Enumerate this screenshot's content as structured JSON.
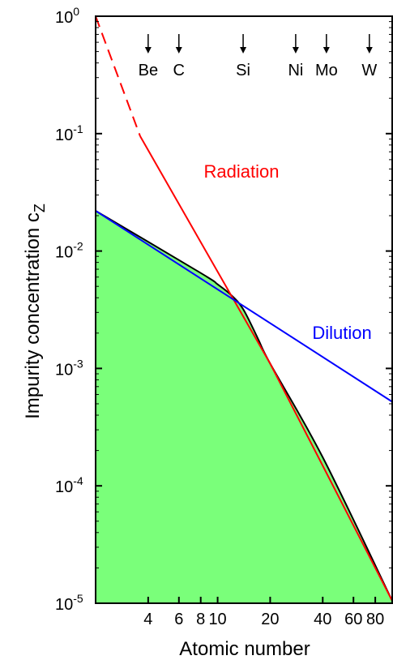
{
  "chart_data": {
    "type": "line",
    "title": "",
    "xlabel": "Atomic number",
    "ylabel_main": "Impurity concentration c",
    "ylabel_sub": "Z",
    "x_scale": "log",
    "y_scale": "log",
    "xlim": [
      2,
      100
    ],
    "ylim": [
      1e-05,
      1
    ],
    "x_ticks": [
      {
        "value": 4,
        "label": "4"
      },
      {
        "value": 6,
        "label": "6"
      },
      {
        "value": 8,
        "label": "8"
      },
      {
        "value": 10,
        "label": "10"
      },
      {
        "value": 20,
        "label": "20"
      },
      {
        "value": 40,
        "label": "40"
      },
      {
        "value": 60,
        "label": "60"
      },
      {
        "value": 80,
        "label": "80"
      }
    ],
    "y_ticks": [
      {
        "value": 1,
        "base": "10",
        "exp": "0"
      },
      {
        "value": 0.1,
        "base": "10",
        "exp": "-1"
      },
      {
        "value": 0.01,
        "base": "10",
        "exp": "-2"
      },
      {
        "value": 0.001,
        "base": "10",
        "exp": "-3"
      },
      {
        "value": 0.0001,
        "base": "10",
        "exp": "-4"
      },
      {
        "value": 1e-05,
        "base": "10",
        "exp": "-5"
      }
    ],
    "grid": false,
    "series": [
      {
        "name": "Radiation",
        "color": "#ff0000",
        "dashed_below_x": 3.6,
        "x": [
          2,
          3.6,
          20,
          100
        ],
        "y": [
          1.0,
          0.095,
          0.0011,
          1.05e-05
        ]
      },
      {
        "name": "Dilution",
        "color": "#0000ff",
        "x": [
          2,
          100
        ],
        "y": [
          0.022,
          0.00052
        ]
      }
    ],
    "envelope": {
      "fill_color": "#7aff7a",
      "line_color": "#000000",
      "x": [
        2,
        8,
        10,
        12,
        14,
        17,
        20,
        40,
        100
      ],
      "y": [
        0.022,
        0.0065,
        0.0052,
        0.0042,
        0.0032,
        0.0018,
        0.0011,
        0.000175,
        1.05e-05
      ]
    },
    "elements": [
      {
        "symbol": "Be",
        "z": 4
      },
      {
        "symbol": "C",
        "z": 6
      },
      {
        "symbol": "Si",
        "z": 14
      },
      {
        "symbol": "Ni",
        "z": 28
      },
      {
        "symbol": "Mo",
        "z": 42
      },
      {
        "symbol": "W",
        "z": 74
      }
    ],
    "annotations": [
      {
        "text": "Radiation",
        "color": "#ff0000"
      },
      {
        "text": "Dilution",
        "color": "#0000ff"
      }
    ]
  }
}
